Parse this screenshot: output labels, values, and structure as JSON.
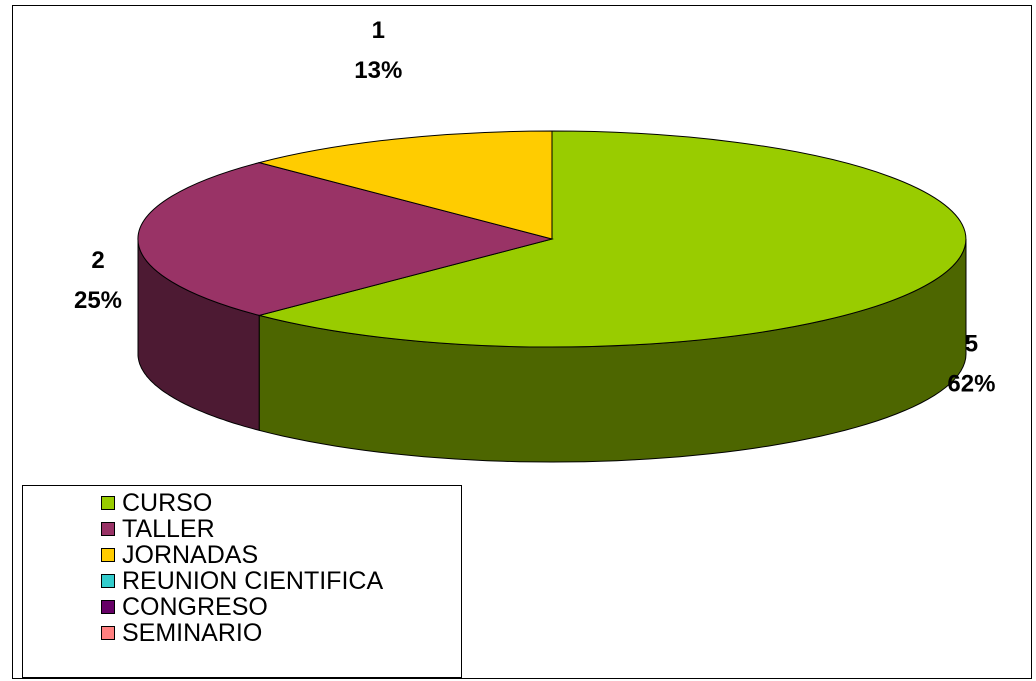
{
  "chart_data": {
    "type": "pie",
    "style": "3d",
    "title": "",
    "categories": [
      "CURSO",
      "TALLER",
      "JORNADAS",
      "REUNION CIENTIFICA",
      "CONGRESO",
      "SEMINARIO"
    ],
    "values": [
      5,
      2,
      1,
      0,
      0,
      0
    ],
    "percent_labels": [
      "62%",
      "25%",
      "13%",
      "",
      "",
      ""
    ],
    "value_labels": [
      "5",
      "2",
      "1",
      "",
      "",
      ""
    ],
    "colors": [
      "#99CC00",
      "#993366",
      "#FFCC00",
      "#33CCCC",
      "#660066",
      "#FF8080"
    ],
    "legend_position": "bottom-left"
  }
}
